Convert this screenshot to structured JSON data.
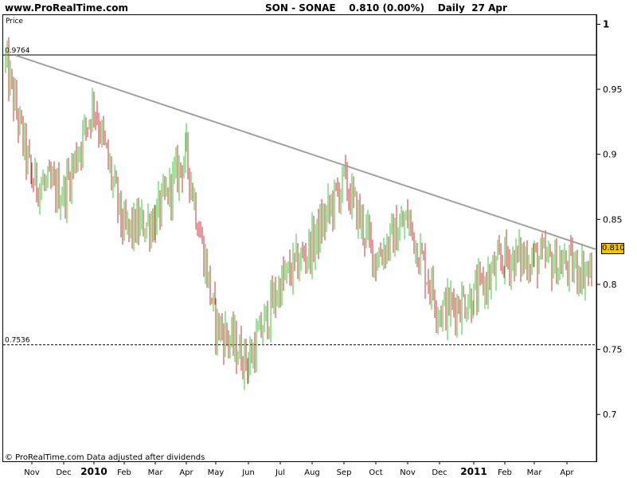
{
  "header": {
    "site": "www.ProRealTime.com",
    "instrument": "SON - SONAE    0.810 (0.00%)    Daily  27 Apr"
  },
  "panel": {
    "price_label": "Price",
    "footer_note": "© ProRealTime.com  Data adjusted after dividends",
    "last_price": "0.810"
  },
  "colors": {
    "up": "#33cc33",
    "down": "#cc3333",
    "trendline": "#a0a0a0",
    "last_price_box": "#f2c400"
  },
  "chart_data": {
    "type": "line",
    "title": "SON - SONAE",
    "xlabel": "",
    "ylabel": "Price",
    "grid": false,
    "x_ticks": [
      {
        "label": "Nov"
      },
      {
        "label": "Dec"
      },
      {
        "label": "2010",
        "bold": true
      },
      {
        "label": "Feb"
      },
      {
        "label": "Mar"
      },
      {
        "label": "Apr"
      },
      {
        "label": "May"
      },
      {
        "label": "Jun"
      },
      {
        "label": "Jul"
      },
      {
        "label": "Aug"
      },
      {
        "label": "Sep"
      },
      {
        "label": "Oct"
      },
      {
        "label": "Nov"
      },
      {
        "label": "Dec"
      },
      {
        "label": "2011",
        "bold": true
      },
      {
        "label": "Feb"
      },
      {
        "label": "Mar"
      },
      {
        "label": "Apr"
      }
    ],
    "y_ticks": [
      {
        "value": 1.0,
        "label": "1"
      },
      {
        "value": 0.95,
        "label": "0.95"
      },
      {
        "value": 0.9,
        "label": "0.9"
      },
      {
        "value": 0.85,
        "label": "0.85"
      },
      {
        "value": 0.8,
        "label": "0.8"
      },
      {
        "value": 0.75,
        "label": "0.75"
      },
      {
        "value": 0.7,
        "label": "0.7"
      }
    ],
    "ylim": [
      0.664,
      1.007
    ],
    "reference_lines": [
      {
        "label": "0.9764",
        "value": 0.9764,
        "style": "solid"
      },
      {
        "label": "0.7536",
        "value": 0.7536,
        "style": "dashed"
      }
    ],
    "trendline": {
      "start": {
        "x": "Oct 2009",
        "y": 0.976
      },
      "end": {
        "x": "27 Apr 2011",
        "y": 0.827
      }
    },
    "series": [
      {
        "type": "bar_ohlc",
        "points": [
          {
            "x": "Oct 2009",
            "y": 0.97
          },
          {
            "x": "Nov 2009",
            "y": 0.88
          },
          {
            "x": "Dec 2009",
            "y": 0.87
          },
          {
            "x": "Jan 2010",
            "y": 0.94
          },
          {
            "x": "Feb 2010",
            "y": 0.84
          },
          {
            "x": "Mar 2010",
            "y": 0.85
          },
          {
            "x": "Apr 2010",
            "y": 0.9
          },
          {
            "x": "May 2010",
            "y": 0.77
          },
          {
            "x": "Jun 2010",
            "y": 0.74
          },
          {
            "x": "Jul 2010",
            "y": 0.8
          },
          {
            "x": "Aug 2010",
            "y": 0.83
          },
          {
            "x": "Sep 2010",
            "y": 0.88
          },
          {
            "x": "Oct 2010",
            "y": 0.82
          },
          {
            "x": "Nov 2010",
            "y": 0.85
          },
          {
            "x": "Dec 2010",
            "y": 0.78
          },
          {
            "x": "Jan 2011",
            "y": 0.79
          },
          {
            "x": "Feb 2011",
            "y": 0.82
          },
          {
            "x": "Mar 2011",
            "y": 0.82
          },
          {
            "x": "Apr 2011",
            "y": 0.81
          }
        ]
      }
    ]
  }
}
